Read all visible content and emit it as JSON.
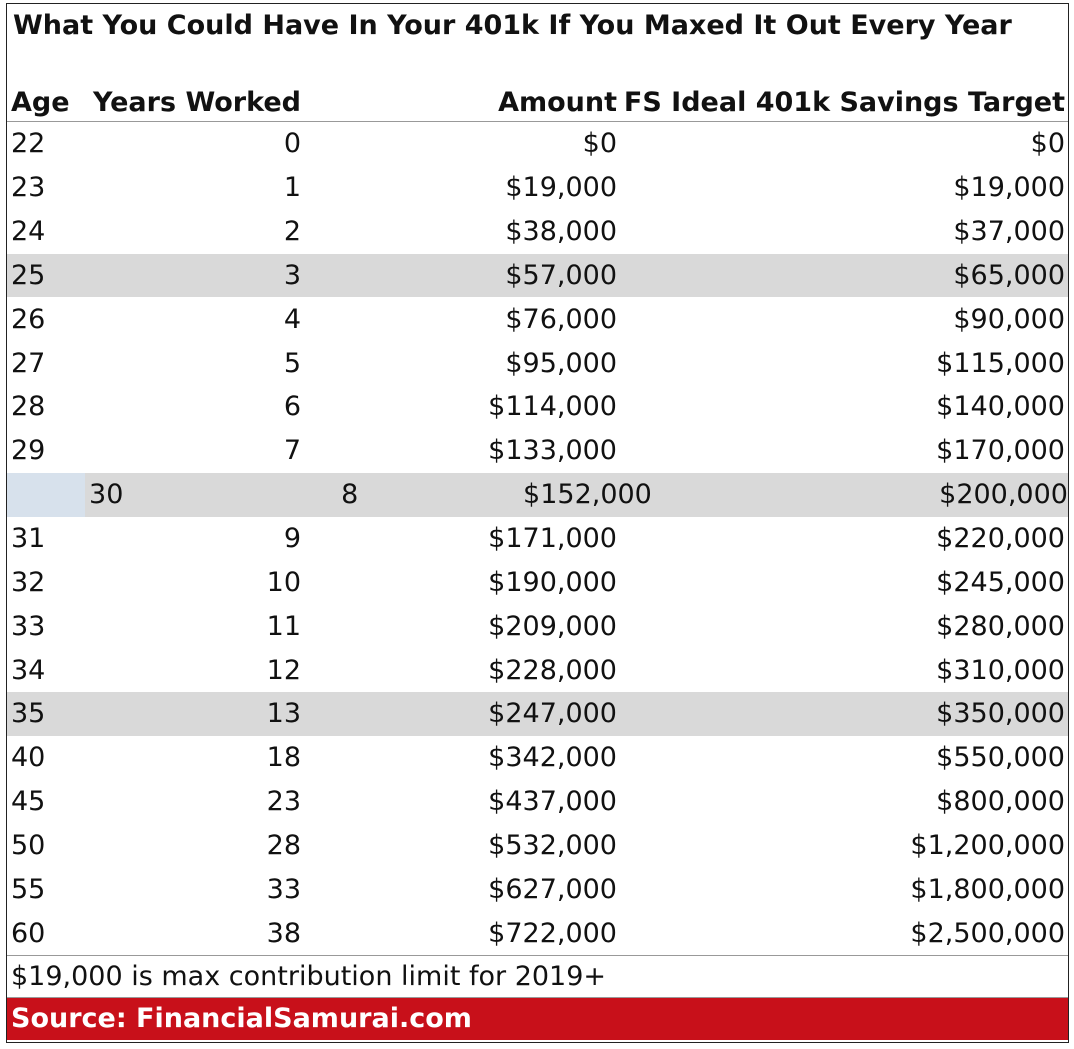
{
  "title": "What You Could Have In Your 401k If You Maxed It Out Every Year",
  "headers": {
    "age": "Age",
    "years": "Years Worked",
    "amount": "Amount",
    "target": "FS Ideal 401k Savings Target"
  },
  "rows": [
    {
      "age": "22",
      "years": "0",
      "amount": "$0",
      "target": "$0"
    },
    {
      "age": "23",
      "years": "1",
      "amount": "$19,000",
      "target": "$19,000"
    },
    {
      "age": "24",
      "years": "2",
      "amount": "$38,000",
      "target": "$37,000"
    },
    {
      "age": "25",
      "years": "3",
      "amount": "$57,000",
      "target": "$65,000"
    },
    {
      "age": "26",
      "years": "4",
      "amount": "$76,000",
      "target": "$90,000"
    },
    {
      "age": "27",
      "years": "5",
      "amount": "$95,000",
      "target": "$115,000"
    },
    {
      "age": "28",
      "years": "6",
      "amount": "$114,000",
      "target": "$140,000"
    },
    {
      "age": "29",
      "years": "7",
      "amount": "$133,000",
      "target": "$170,000"
    },
    {
      "age": "30",
      "years": "8",
      "amount": "$152,000",
      "target": "$200,000"
    },
    {
      "age": "31",
      "years": "9",
      "amount": "$171,000",
      "target": "$220,000"
    },
    {
      "age": "32",
      "years": "10",
      "amount": "$190,000",
      "target": "$245,000"
    },
    {
      "age": "33",
      "years": "11",
      "amount": "$209,000",
      "target": "$280,000"
    },
    {
      "age": "34",
      "years": "12",
      "amount": "$228,000",
      "target": "$310,000"
    },
    {
      "age": "35",
      "years": "13",
      "amount": "$247,000",
      "target": "$350,000"
    },
    {
      "age": "40",
      "years": "18",
      "amount": "$342,000",
      "target": "$550,000"
    },
    {
      "age": "45",
      "years": "23",
      "amount": "$437,000",
      "target": "$800,000"
    },
    {
      "age": "50",
      "years": "28",
      "amount": "$532,000",
      "target": "$1,200,000"
    },
    {
      "age": "55",
      "years": "33",
      "amount": "$627,000",
      "target": "$1,800,000"
    },
    {
      "age": "60",
      "years": "38",
      "amount": "$722,000",
      "target": "$2,500,000"
    }
  ],
  "note": "$19,000 is max contribution limit for 2019+",
  "source": "Source: FinancialSamurai.com",
  "colors": {
    "row_highlight": "#d9d9d9",
    "selected_cell": "#d7e1ec",
    "source_banner": "#c8101a"
  }
}
